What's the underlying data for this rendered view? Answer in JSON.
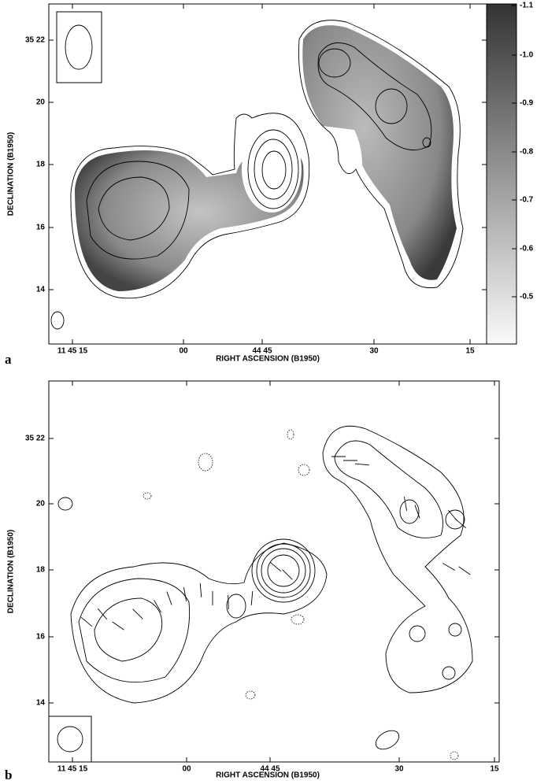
{
  "panels": [
    {
      "label": "a",
      "x_label": "RIGHT ASCENSION (B1950)",
      "y_label": "DECLINATION (B1950)",
      "xtick_labels": [
        "11 45 15",
        "00",
        "44 45",
        "30",
        "15"
      ],
      "ytick_labels": [
        "35 22",
        "20",
        "18",
        "16",
        "14"
      ],
      "colorbar_labels": [
        "-1.1",
        "-1.0",
        "-0.9",
        "-0.8",
        "-0.7",
        "-0.6",
        "-0.5"
      ]
    },
    {
      "label": "b",
      "x_label": "RIGHT ASCENSION (B1950)",
      "y_label": "DECLINATION (B1950)",
      "xtick_labels": [
        "11 45 15",
        "00",
        "44 45",
        "30",
        "15"
      ],
      "ytick_labels": [
        "35 22",
        "20",
        "18",
        "16",
        "14"
      ]
    }
  ]
}
